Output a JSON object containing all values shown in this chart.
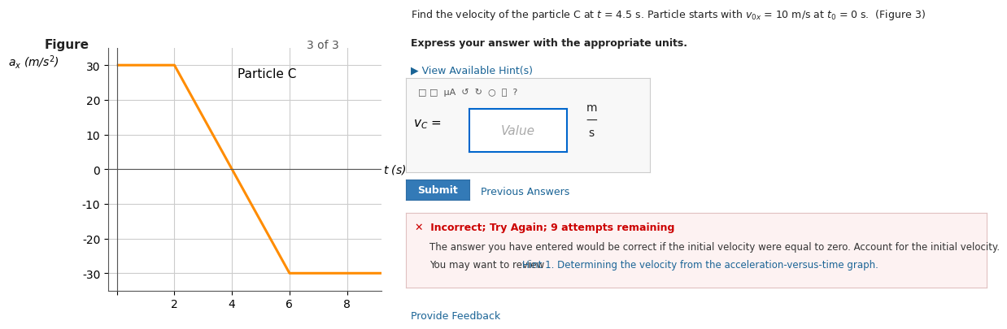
{
  "title": "Particle C",
  "ylabel": "$a_x$ (m/s$^2$)",
  "xlabel": "$t$ (s)",
  "line_x": [
    0,
    2,
    6,
    9.2
  ],
  "line_y": [
    30,
    30,
    -30,
    -30
  ],
  "line_color": "#FF8C00",
  "line_width": 2.2,
  "xlim": [
    -0.3,
    9.2
  ],
  "ylim": [
    -35,
    35
  ],
  "xticks": [
    0,
    2,
    4,
    6,
    8
  ],
  "xtick_labels": [
    "",
    "2",
    "4",
    "6",
    "8"
  ],
  "yticks": [
    -30,
    -20,
    -10,
    0,
    10,
    20,
    30
  ],
  "ytick_labels": [
    "-30",
    "-20",
    "-10",
    "0",
    "10",
    "20",
    "30"
  ],
  "grid_color": "#cccccc",
  "bg_color": "#ffffff",
  "panel_bg": "#f5f5f5",
  "figure_label": "Figure",
  "nav_label": "3 of 3"
}
